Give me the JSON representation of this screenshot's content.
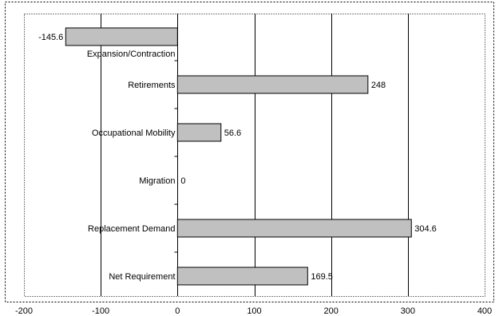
{
  "chart_data": {
    "type": "bar",
    "orientation": "horizontal",
    "categories": [
      "Expansion/Contraction",
      "Retirements",
      "Occupational Mobility",
      "Migration",
      "Replacement Demand",
      "Net Requirement"
    ],
    "values": [
      -145.6,
      248,
      56.6,
      0,
      304.6,
      169.5
    ],
    "value_labels": [
      "-145.6",
      "248",
      "56.6",
      "0",
      "304.6",
      "169.5"
    ],
    "xlim": [
      -200,
      400
    ],
    "x_ticks": [
      -200,
      -100,
      0,
      100,
      200,
      300,
      400
    ],
    "x_tick_labels": [
      "-200",
      "-100",
      "0",
      "100",
      "200",
      "300",
      "400"
    ],
    "grid": "vertical",
    "bar_color": "#c0c0c0",
    "title": "",
    "xlabel": "",
    "ylabel": ""
  }
}
